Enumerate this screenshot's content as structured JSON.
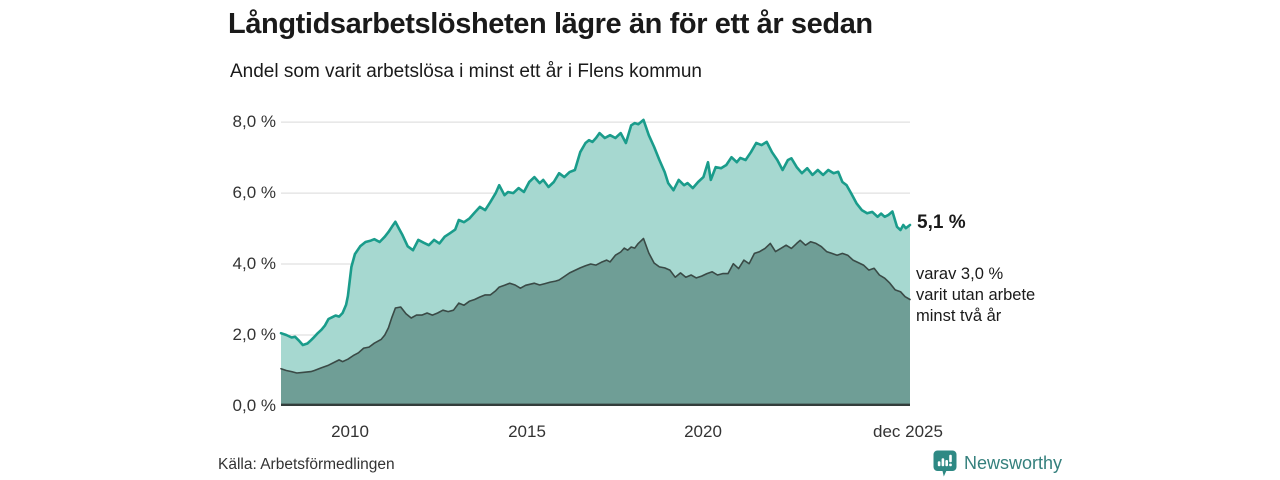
{
  "header": {
    "title": "Långtidsarbetslösheten lägre än för ett år sedan",
    "subtitle": "Andel som varit arbetslösa i minst ett år i Flens kommun"
  },
  "annotations": {
    "latest_total": "5,1 %",
    "secondary_lines": [
      "varav 3,0 %",
      "varit utan arbete",
      "minst två år"
    ]
  },
  "source": {
    "label": "Källa: Arbetsförmedlingen"
  },
  "branding": {
    "name": "Newsworthy",
    "logo_icon": "bar-chart-speech-bubble-icon"
  },
  "colors": {
    "accent_line": "#1a9c8b",
    "light_fill": "#a6d8d0",
    "dark_fill": "#6f9e96",
    "dark_line": "#3a4a46",
    "baseline_axis": "#333d3b",
    "gridline": "#d9d9d9",
    "brand_teal": "#35807d",
    "logo_fill": "#2e8984"
  },
  "chart_data": {
    "type": "area",
    "title": "Långtidsarbetslösheten lägre än för ett år sedan",
    "subtitle": "Andel som varit arbetslösa i minst ett år i Flens kommun",
    "unit": "%",
    "xlim": [
      2008.05,
      2025.92
    ],
    "ylim": [
      0,
      8.34
    ],
    "grid": "horizontal",
    "legend_position": "right-annotations",
    "y_ticks": [
      0,
      2,
      4,
      6,
      8
    ],
    "y_tick_labels": [
      "0,0 %",
      "2,0 %",
      "4,0 %",
      "6,0 %",
      "8,0 %"
    ],
    "x_tick_positions": [
      2010,
      2015,
      2020,
      2025.92
    ],
    "x_tick_labels": [
      "2010",
      "2015",
      "2020",
      "dec 2025"
    ],
    "series": [
      {
        "name": "Arbetslösa minst ett år",
        "end_label": "5,1 %",
        "end_value": 5.1,
        "points": [
          [
            2008.05,
            2.05
          ],
          [
            2008.2,
            2.0
          ],
          [
            2008.35,
            1.93
          ],
          [
            2008.45,
            1.95
          ],
          [
            2008.55,
            1.85
          ],
          [
            2008.67,
            1.72
          ],
          [
            2008.8,
            1.76
          ],
          [
            2008.9,
            1.85
          ],
          [
            2009.0,
            1.95
          ],
          [
            2009.1,
            2.06
          ],
          [
            2009.2,
            2.15
          ],
          [
            2009.3,
            2.27
          ],
          [
            2009.4,
            2.45
          ],
          [
            2009.5,
            2.5
          ],
          [
            2009.6,
            2.55
          ],
          [
            2009.7,
            2.52
          ],
          [
            2009.8,
            2.62
          ],
          [
            2009.9,
            2.85
          ],
          [
            2009.95,
            3.1
          ],
          [
            2010.0,
            3.5
          ],
          [
            2010.05,
            3.92
          ],
          [
            2010.15,
            4.28
          ],
          [
            2010.3,
            4.5
          ],
          [
            2010.45,
            4.62
          ],
          [
            2010.6,
            4.66
          ],
          [
            2010.7,
            4.7
          ],
          [
            2010.85,
            4.62
          ],
          [
            2011.0,
            4.77
          ],
          [
            2011.1,
            4.9
          ],
          [
            2011.2,
            5.05
          ],
          [
            2011.3,
            5.19
          ],
          [
            2011.4,
            5.0
          ],
          [
            2011.5,
            4.82
          ],
          [
            2011.65,
            4.5
          ],
          [
            2011.8,
            4.39
          ],
          [
            2011.95,
            4.68
          ],
          [
            2012.1,
            4.6
          ],
          [
            2012.25,
            4.53
          ],
          [
            2012.4,
            4.68
          ],
          [
            2012.55,
            4.58
          ],
          [
            2012.7,
            4.77
          ],
          [
            2012.85,
            4.87
          ],
          [
            2013.0,
            4.97
          ],
          [
            2013.1,
            5.24
          ],
          [
            2013.25,
            5.18
          ],
          [
            2013.4,
            5.28
          ],
          [
            2013.55,
            5.45
          ],
          [
            2013.7,
            5.61
          ],
          [
            2013.85,
            5.52
          ],
          [
            2014.0,
            5.75
          ],
          [
            2014.15,
            6.0
          ],
          [
            2014.25,
            6.22
          ],
          [
            2014.4,
            5.94
          ],
          [
            2014.5,
            6.03
          ],
          [
            2014.65,
            6.0
          ],
          [
            2014.8,
            6.14
          ],
          [
            2014.95,
            6.03
          ],
          [
            2015.1,
            6.31
          ],
          [
            2015.25,
            6.45
          ],
          [
            2015.4,
            6.28
          ],
          [
            2015.5,
            6.37
          ],
          [
            2015.65,
            6.17
          ],
          [
            2015.8,
            6.31
          ],
          [
            2015.95,
            6.56
          ],
          [
            2016.1,
            6.45
          ],
          [
            2016.25,
            6.59
          ],
          [
            2016.4,
            6.65
          ],
          [
            2016.55,
            7.15
          ],
          [
            2016.7,
            7.41
          ],
          [
            2016.8,
            7.49
          ],
          [
            2016.9,
            7.44
          ],
          [
            2017.0,
            7.55
          ],
          [
            2017.1,
            7.69
          ],
          [
            2017.25,
            7.55
          ],
          [
            2017.4,
            7.63
          ],
          [
            2017.55,
            7.55
          ],
          [
            2017.7,
            7.69
          ],
          [
            2017.85,
            7.41
          ],
          [
            2018.0,
            7.91
          ],
          [
            2018.1,
            7.97
          ],
          [
            2018.2,
            7.94
          ],
          [
            2018.35,
            8.06
          ],
          [
            2018.5,
            7.63
          ],
          [
            2018.65,
            7.3
          ],
          [
            2018.8,
            6.93
          ],
          [
            2018.95,
            6.59
          ],
          [
            2019.05,
            6.28
          ],
          [
            2019.2,
            6.08
          ],
          [
            2019.35,
            6.37
          ],
          [
            2019.5,
            6.22
          ],
          [
            2019.6,
            6.28
          ],
          [
            2019.75,
            6.14
          ],
          [
            2019.9,
            6.31
          ],
          [
            2020.05,
            6.45
          ],
          [
            2020.18,
            6.87
          ],
          [
            2020.26,
            6.37
          ],
          [
            2020.4,
            6.73
          ],
          [
            2020.55,
            6.7
          ],
          [
            2020.7,
            6.79
          ],
          [
            2020.85,
            7.01
          ],
          [
            2021.0,
            6.87
          ],
          [
            2021.1,
            6.99
          ],
          [
            2021.25,
            6.93
          ],
          [
            2021.4,
            7.15
          ],
          [
            2021.55,
            7.41
          ],
          [
            2021.7,
            7.35
          ],
          [
            2021.85,
            7.44
          ],
          [
            2022.0,
            7.15
          ],
          [
            2022.15,
            6.93
          ],
          [
            2022.3,
            6.65
          ],
          [
            2022.45,
            6.93
          ],
          [
            2022.55,
            6.98
          ],
          [
            2022.7,
            6.73
          ],
          [
            2022.85,
            6.56
          ],
          [
            2023.0,
            6.7
          ],
          [
            2023.15,
            6.51
          ],
          [
            2023.3,
            6.65
          ],
          [
            2023.45,
            6.51
          ],
          [
            2023.6,
            6.65
          ],
          [
            2023.75,
            6.56
          ],
          [
            2023.88,
            6.6
          ],
          [
            2024.0,
            6.31
          ],
          [
            2024.12,
            6.22
          ],
          [
            2024.25,
            5.99
          ],
          [
            2024.4,
            5.71
          ],
          [
            2024.55,
            5.52
          ],
          [
            2024.7,
            5.43
          ],
          [
            2024.85,
            5.47
          ],
          [
            2025.0,
            5.33
          ],
          [
            2025.1,
            5.42
          ],
          [
            2025.2,
            5.33
          ],
          [
            2025.3,
            5.38
          ],
          [
            2025.42,
            5.48
          ],
          [
            2025.55,
            5.05
          ],
          [
            2025.65,
            4.96
          ],
          [
            2025.73,
            5.1
          ],
          [
            2025.8,
            5.01
          ],
          [
            2025.92,
            5.1
          ]
        ]
      },
      {
        "name": "varav utan arbete minst två år",
        "end_label": "3,0 %",
        "end_value": 3.0,
        "points": [
          [
            2008.05,
            1.05
          ],
          [
            2008.2,
            1.0
          ],
          [
            2008.35,
            0.97
          ],
          [
            2008.5,
            0.93
          ],
          [
            2008.7,
            0.95
          ],
          [
            2008.9,
            0.97
          ],
          [
            2009.0,
            1.0
          ],
          [
            2009.2,
            1.08
          ],
          [
            2009.4,
            1.15
          ],
          [
            2009.6,
            1.25
          ],
          [
            2009.7,
            1.3
          ],
          [
            2009.8,
            1.25
          ],
          [
            2009.95,
            1.32
          ],
          [
            2010.1,
            1.42
          ],
          [
            2010.25,
            1.5
          ],
          [
            2010.4,
            1.63
          ],
          [
            2010.55,
            1.66
          ],
          [
            2010.7,
            1.77
          ],
          [
            2010.9,
            1.88
          ],
          [
            2011.0,
            2.0
          ],
          [
            2011.1,
            2.2
          ],
          [
            2011.2,
            2.5
          ],
          [
            2011.3,
            2.76
          ],
          [
            2011.45,
            2.79
          ],
          [
            2011.6,
            2.6
          ],
          [
            2011.75,
            2.48
          ],
          [
            2011.9,
            2.56
          ],
          [
            2012.05,
            2.56
          ],
          [
            2012.2,
            2.62
          ],
          [
            2012.35,
            2.56
          ],
          [
            2012.5,
            2.62
          ],
          [
            2012.65,
            2.7
          ],
          [
            2012.8,
            2.66
          ],
          [
            2012.95,
            2.7
          ],
          [
            2013.1,
            2.9
          ],
          [
            2013.25,
            2.84
          ],
          [
            2013.4,
            2.95
          ],
          [
            2013.55,
            3.0
          ],
          [
            2013.7,
            3.07
          ],
          [
            2013.85,
            3.13
          ],
          [
            2014.0,
            3.13
          ],
          [
            2014.15,
            3.25
          ],
          [
            2014.25,
            3.35
          ],
          [
            2014.4,
            3.4
          ],
          [
            2014.55,
            3.46
          ],
          [
            2014.7,
            3.41
          ],
          [
            2014.85,
            3.32
          ],
          [
            2015.0,
            3.4
          ],
          [
            2015.25,
            3.46
          ],
          [
            2015.4,
            3.41
          ],
          [
            2015.55,
            3.45
          ],
          [
            2015.7,
            3.49
          ],
          [
            2015.85,
            3.52
          ],
          [
            2015.95,
            3.55
          ],
          [
            2016.1,
            3.65
          ],
          [
            2016.25,
            3.75
          ],
          [
            2016.4,
            3.82
          ],
          [
            2016.55,
            3.89
          ],
          [
            2016.7,
            3.95
          ],
          [
            2016.85,
            4.0
          ],
          [
            2017.0,
            3.97
          ],
          [
            2017.15,
            4.05
          ],
          [
            2017.3,
            4.11
          ],
          [
            2017.4,
            4.06
          ],
          [
            2017.55,
            4.25
          ],
          [
            2017.7,
            4.34
          ],
          [
            2017.8,
            4.45
          ],
          [
            2017.9,
            4.39
          ],
          [
            2018.0,
            4.48
          ],
          [
            2018.1,
            4.45
          ],
          [
            2018.2,
            4.58
          ],
          [
            2018.35,
            4.72
          ],
          [
            2018.5,
            4.31
          ],
          [
            2018.65,
            4.03
          ],
          [
            2018.8,
            3.92
          ],
          [
            2018.95,
            3.89
          ],
          [
            2019.1,
            3.83
          ],
          [
            2019.25,
            3.63
          ],
          [
            2019.4,
            3.75
          ],
          [
            2019.55,
            3.63
          ],
          [
            2019.7,
            3.69
          ],
          [
            2019.85,
            3.61
          ],
          [
            2020.0,
            3.66
          ],
          [
            2020.15,
            3.73
          ],
          [
            2020.3,
            3.78
          ],
          [
            2020.45,
            3.69
          ],
          [
            2020.6,
            3.73
          ],
          [
            2020.75,
            3.73
          ],
          [
            2020.9,
            4.01
          ],
          [
            2021.05,
            3.87
          ],
          [
            2021.2,
            4.11
          ],
          [
            2021.35,
            4.01
          ],
          [
            2021.5,
            4.3
          ],
          [
            2021.65,
            4.35
          ],
          [
            2021.8,
            4.44
          ],
          [
            2021.95,
            4.58
          ],
          [
            2022.1,
            4.35
          ],
          [
            2022.25,
            4.44
          ],
          [
            2022.4,
            4.53
          ],
          [
            2022.55,
            4.44
          ],
          [
            2022.7,
            4.58
          ],
          [
            2022.8,
            4.67
          ],
          [
            2022.95,
            4.53
          ],
          [
            2023.1,
            4.63
          ],
          [
            2023.25,
            4.58
          ],
          [
            2023.4,
            4.49
          ],
          [
            2023.55,
            4.35
          ],
          [
            2023.7,
            4.3
          ],
          [
            2023.85,
            4.25
          ],
          [
            2024.0,
            4.3
          ],
          [
            2024.15,
            4.25
          ],
          [
            2024.3,
            4.11
          ],
          [
            2024.45,
            4.04
          ],
          [
            2024.6,
            3.97
          ],
          [
            2024.75,
            3.83
          ],
          [
            2024.9,
            3.88
          ],
          [
            2025.05,
            3.69
          ],
          [
            2025.2,
            3.6
          ],
          [
            2025.35,
            3.46
          ],
          [
            2025.5,
            3.27
          ],
          [
            2025.65,
            3.22
          ],
          [
            2025.78,
            3.08
          ],
          [
            2025.92,
            3.0
          ]
        ]
      }
    ]
  }
}
